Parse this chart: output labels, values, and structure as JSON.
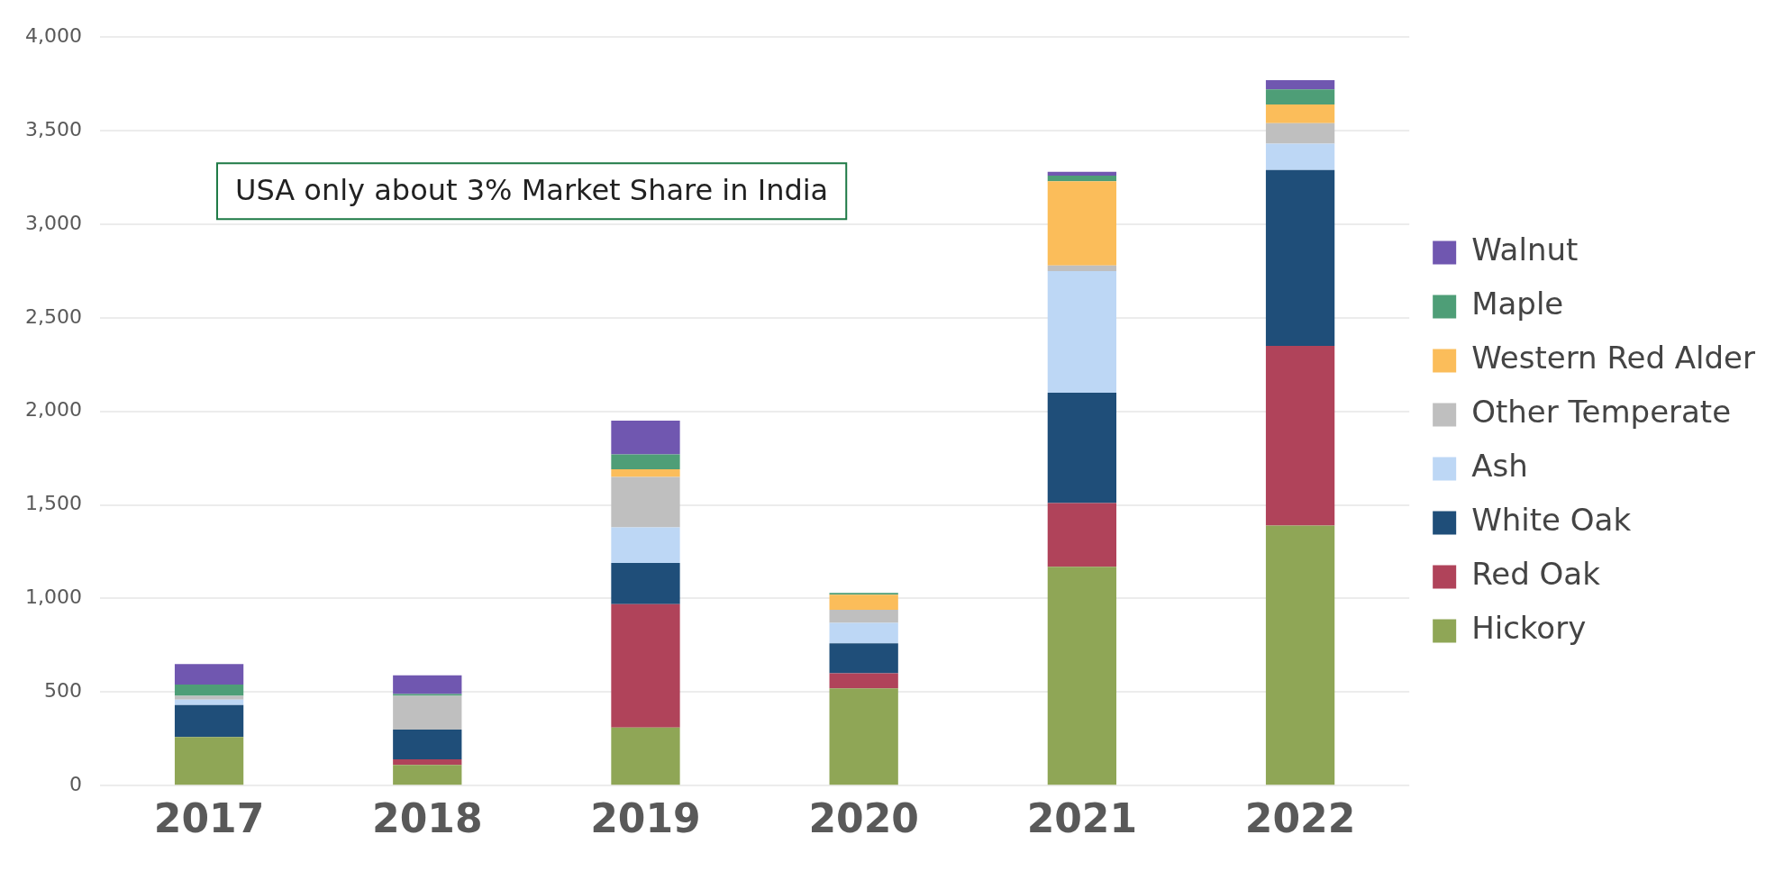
{
  "chart_data": {
    "type": "bar",
    "stacked": true,
    "categories": [
      "2017",
      "2018",
      "2019",
      "2020",
      "2021",
      "2022"
    ],
    "series": [
      {
        "name": "Hickory",
        "color": "#8fa656",
        "values": [
          260,
          110,
          310,
          520,
          1170,
          1390
        ]
      },
      {
        "name": "Red Oak",
        "color": "#b0435a",
        "values": [
          0,
          30,
          660,
          80,
          340,
          960
        ]
      },
      {
        "name": "White Oak",
        "color": "#1f4e79",
        "values": [
          170,
          160,
          220,
          160,
          590,
          940
        ]
      },
      {
        "name": "Ash",
        "color": "#bdd7f5",
        "values": [
          30,
          0,
          190,
          110,
          650,
          140
        ]
      },
      {
        "name": "Other Temperate",
        "color": "#bfbfbf",
        "values": [
          20,
          180,
          270,
          70,
          30,
          110
        ]
      },
      {
        "name": "Western Red Alder",
        "color": "#fbbd5a",
        "values": [
          0,
          0,
          40,
          80,
          450,
          100
        ]
      },
      {
        "name": "Maple",
        "color": "#4e9e77",
        "values": [
          60,
          10,
          80,
          10,
          30,
          80
        ]
      },
      {
        "name": "Walnut",
        "color": "#7057b0",
        "values": [
          110,
          100,
          180,
          0,
          20,
          50
        ]
      }
    ],
    "ylim": [
      0,
      4000
    ],
    "yticks": [
      0,
      500,
      {
        "value": 1000,
        "label": "1,000"
      },
      {
        "value": 1500,
        "label": "1,500"
      },
      {
        "value": 2000,
        "label": "2,000"
      },
      {
        "value": 2500,
        "label": "2,500"
      },
      {
        "value": 3000,
        "label": "3,000"
      },
      {
        "value": 3500,
        "label": "3,500"
      },
      {
        "value": 4000,
        "label": "4,000"
      }
    ],
    "grid": "y",
    "legend": "right",
    "annotations": [
      "USA only about 3% Market Share in India"
    ]
  }
}
